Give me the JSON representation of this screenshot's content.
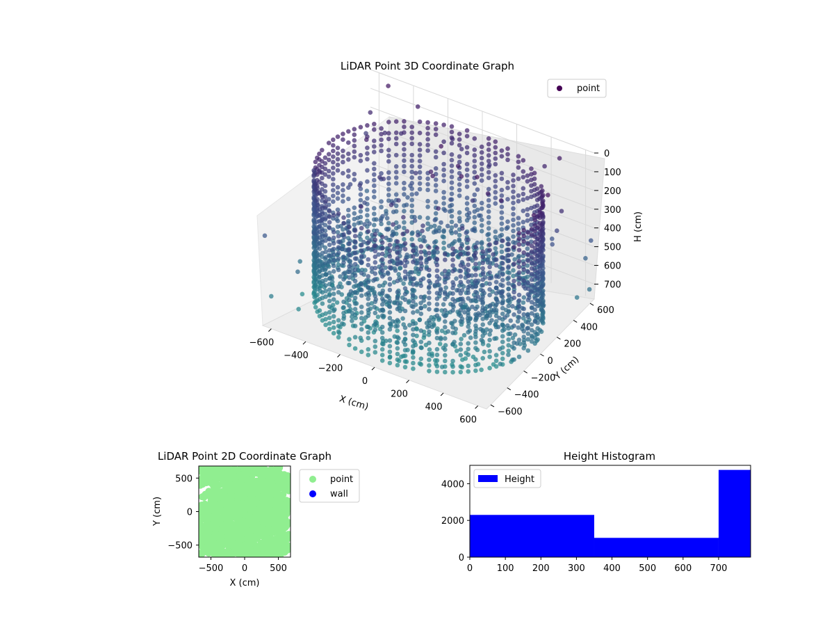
{
  "colors": {
    "point_dark": "#440154",
    "point_mid": "#3b528b",
    "point_light": "#5ec962",
    "point_2d": "#90ee90",
    "wall": "#0000ff",
    "hist": "#0000ff"
  },
  "chart_data": [
    {
      "type": "scatter",
      "projection": "3d",
      "title": "LiDAR Point 3D Coordinate Graph",
      "xlabel": "X (cm)",
      "ylabel": "Y (cm)",
      "zlabel": "H (cm)",
      "x_ticks": [
        "−600",
        "−400",
        "−200",
        "0",
        "200",
        "400",
        "600"
      ],
      "y_ticks": [
        "−600",
        "−400",
        "−200",
        "0",
        "200",
        "400",
        "600"
      ],
      "z_ticks": [
        "0",
        "100",
        "200",
        "300",
        "400",
        "500",
        "600",
        "700"
      ],
      "xlim": [
        -650,
        650
      ],
      "ylim": [
        -650,
        650
      ],
      "zlim": [
        0,
        780
      ],
      "z_inverted": true,
      "colormap": "viridis",
      "grid": true,
      "legend": {
        "placement": "top-right",
        "entries": [
          "point"
        ]
      },
      "series": [
        {
          "name": "point",
          "description_shape": "ring wall radius ~600cm spanning full height plus scattered floor points",
          "wall_radius": 600,
          "height_range": [
            0,
            780
          ]
        }
      ]
    },
    {
      "type": "scatter",
      "title": "LiDAR Point 2D Coordinate Graph",
      "xlabel": "X (cm)",
      "ylabel": "Y (cm)",
      "x_ticks": [
        "−500",
        "0",
        "500"
      ],
      "y_ticks": [
        "500",
        "0",
        "−500"
      ],
      "xlim": [
        -680,
        680
      ],
      "ylim": [
        -680,
        680
      ],
      "legend": {
        "placement": "outside-right",
        "entries": [
          "point",
          "wall"
        ]
      },
      "series": [
        {
          "name": "point",
          "color": "#90ee90",
          "extent": [
            -650,
            650
          ]
        },
        {
          "name": "wall",
          "color": "#0000ff",
          "count": 0
        }
      ]
    },
    {
      "type": "bar",
      "title": "Height Histogram",
      "xlabel": "",
      "ylabel": "",
      "x_ticks": [
        "0",
        "100",
        "200",
        "300",
        "400",
        "500",
        "600",
        "700"
      ],
      "y_ticks": [
        "0",
        "2000",
        "4000"
      ],
      "xlim": [
        0,
        790
      ],
      "ylim": [
        0,
        5000
      ],
      "legend": {
        "placement": "top-left",
        "entries": [
          "Height"
        ]
      },
      "bins": [
        {
          "start": 0,
          "end": 350,
          "count": 2300
        },
        {
          "start": 350,
          "end": 700,
          "count": 1050
        },
        {
          "start": 700,
          "end": 790,
          "count": 4750
        }
      ]
    }
  ]
}
